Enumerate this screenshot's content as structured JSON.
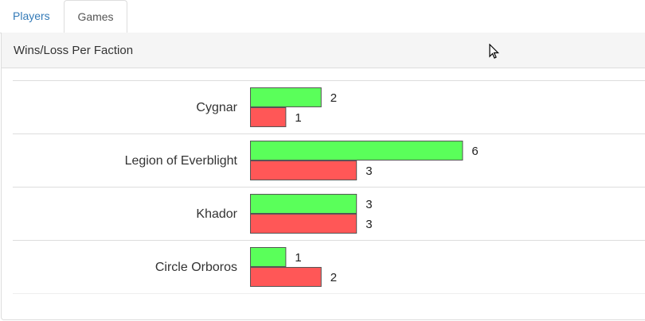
{
  "tabs": [
    {
      "label": "Players",
      "active": false
    },
    {
      "label": "Games",
      "active": true
    }
  ],
  "panel": {
    "title": "Wins/Loss Per Faction"
  },
  "colors": {
    "wins": "#5aff5a",
    "losses": "#ff5757",
    "link": "#337ab7"
  },
  "chart_data": {
    "type": "bar",
    "orientation": "horizontal",
    "categories": [
      "Cygnar",
      "Legion of Everblight",
      "Khador",
      "Circle Orboros"
    ],
    "series": [
      {
        "values": [
          2,
          6,
          3,
          1
        ],
        "color": "#5aff5a"
      },
      {
        "values": [
          1,
          3,
          3,
          2
        ],
        "color": "#ff5757"
      }
    ],
    "grid": false,
    "legend": "none"
  }
}
